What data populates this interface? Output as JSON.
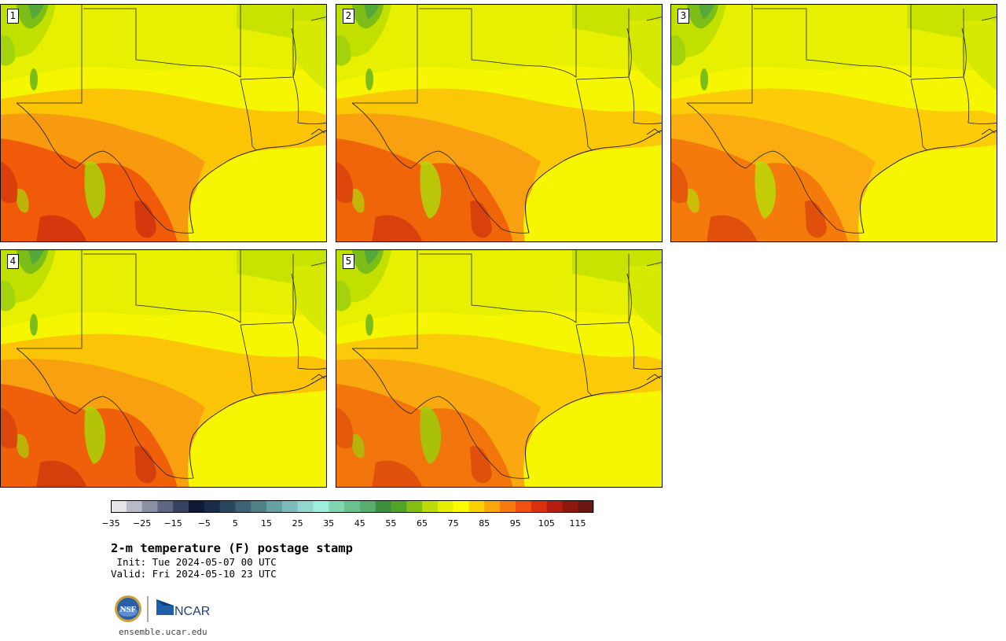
{
  "panels": [
    {
      "label": "1",
      "variant": 0
    },
    {
      "label": "2",
      "variant": 1
    },
    {
      "label": "3",
      "variant": 2
    },
    {
      "label": "4",
      "variant": 3
    },
    {
      "label": "5",
      "variant": 4
    }
  ],
  "colorbar": {
    "colors": [
      "#e4e6ea",
      "#b8bac6",
      "#8b8fa2",
      "#5f6682",
      "#374263",
      "#111a36",
      "#1a2a4a",
      "#2b4760",
      "#3c6375",
      "#518086",
      "#67a0a4",
      "#7dbcbc",
      "#92d6d0",
      "#9eeedd",
      "#7fd6b1",
      "#69c28e",
      "#58ad6f",
      "#3c8f3c",
      "#52a328",
      "#83bf12",
      "#bcdb08",
      "#e6ef00",
      "#fdfd00",
      "#fbd203",
      "#fba609",
      "#f97a0f",
      "#f25010",
      "#db310e",
      "#b51d0e",
      "#8e1810",
      "#6b1712"
    ],
    "tick_labels": [
      "−35",
      "−25",
      "−15",
      "−5",
      "5",
      "15",
      "25",
      "35",
      "45",
      "55",
      "65",
      "75",
      "85",
      "95",
      "105",
      "115"
    ]
  },
  "title": "2-m temperature (F) postage stamp",
  "init_line": " Init: Tue 2024-05-07 00 UTC",
  "valid_line": "Valid: Fri 2024-05-10 23 UTC",
  "logos": {
    "nsf": "NSF",
    "ncar": "NCAR"
  },
  "url": "ensemble.ucar.edu"
}
